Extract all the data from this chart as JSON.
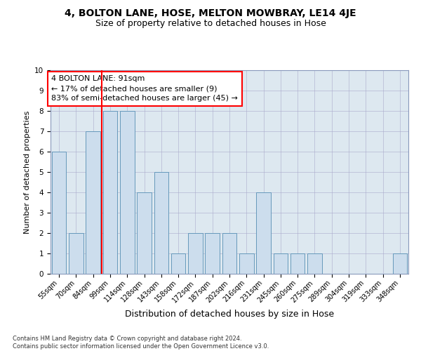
{
  "title": "4, BOLTON LANE, HOSE, MELTON MOWBRAY, LE14 4JE",
  "subtitle": "Size of property relative to detached houses in Hose",
  "xlabel": "Distribution of detached houses by size in Hose",
  "ylabel": "Number of detached properties",
  "categories": [
    "55sqm",
    "70sqm",
    "84sqm",
    "99sqm",
    "114sqm",
    "128sqm",
    "143sqm",
    "158sqm",
    "172sqm",
    "187sqm",
    "202sqm",
    "216sqm",
    "231sqm",
    "245sqm",
    "260sqm",
    "275sqm",
    "289sqm",
    "304sqm",
    "319sqm",
    "333sqm",
    "348sqm"
  ],
  "values": [
    6,
    2,
    7,
    8,
    8,
    4,
    5,
    1,
    2,
    2,
    2,
    1,
    4,
    1,
    1,
    1,
    0,
    0,
    0,
    0,
    1
  ],
  "bar_color": "#ccdded",
  "bar_edge_color": "#6699bb",
  "red_line_x": 2.5,
  "annotation_text": "4 BOLTON LANE: 91sqm\n← 17% of detached houses are smaller (9)\n83% of semi-detached houses are larger (45) →",
  "annotation_box_color": "white",
  "annotation_box_edge_color": "red",
  "ylim": [
    0,
    10
  ],
  "yticks": [
    0,
    1,
    2,
    3,
    4,
    5,
    6,
    7,
    8,
    9,
    10
  ],
  "grid_color": "#aaaacc",
  "axes_bg_color": "#dde8f0",
  "background_color": "white",
  "footer_line1": "Contains HM Land Registry data © Crown copyright and database right 2024.",
  "footer_line2": "Contains public sector information licensed under the Open Government Licence v3.0.",
  "title_fontsize": 10,
  "subtitle_fontsize": 9,
  "annotation_fontsize": 8,
  "ylabel_fontsize": 8,
  "xlabel_fontsize": 9,
  "footer_fontsize": 6,
  "tick_fontsize": 7
}
